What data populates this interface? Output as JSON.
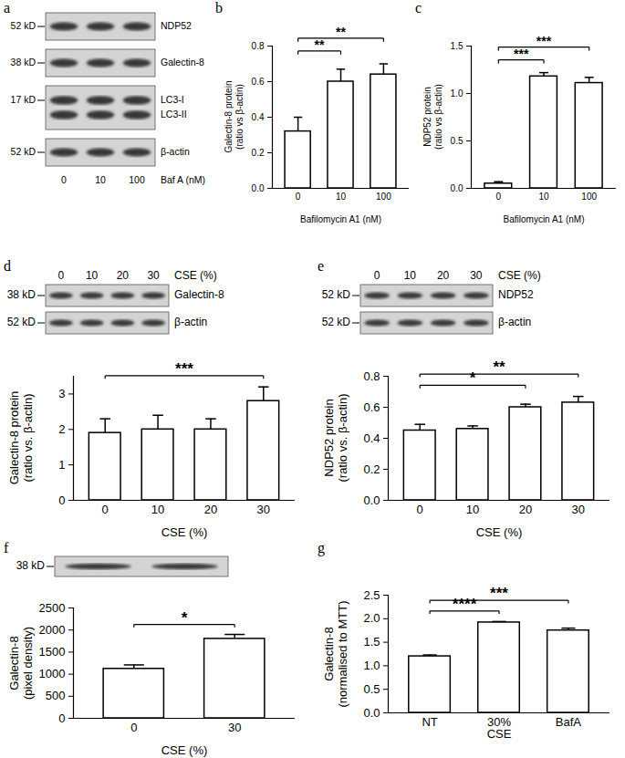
{
  "chart_data": [
    {
      "panel": "b",
      "type": "bar",
      "categories": [
        "0",
        "10",
        "100"
      ],
      "values": [
        0.32,
        0.6,
        0.64
      ],
      "errors": [
        0.08,
        0.07,
        0.06
      ],
      "xlabel": "Bafilomycin A1 (nM)",
      "ylabel": "Galectin-8 protein\n(ratio vs β-actin)",
      "ylim": [
        0,
        0.8
      ],
      "yticks": [
        {
          "value": 0,
          "label": "0.0"
        },
        {
          "value": 0.2,
          "label": "0.2"
        },
        {
          "value": 0.4,
          "label": "0.4"
        },
        {
          "value": 0.6,
          "label": "0.6"
        },
        {
          "value": 0.8,
          "label": "0.8"
        }
      ],
      "significance": [
        {
          "from": "0",
          "to": "10",
          "text": "**"
        },
        {
          "from": "0",
          "to": "100",
          "text": "**"
        }
      ]
    },
    {
      "panel": "c",
      "type": "bar",
      "categories": [
        "0",
        "10",
        "100"
      ],
      "values": [
        0.05,
        1.18,
        1.11
      ],
      "errors": [
        0.02,
        0.04,
        0.06
      ],
      "xlabel": "Bafilomycin A1 (nM)",
      "ylabel": "NDP52 protein\n(ratio vs β-actin)",
      "ylim": [
        0,
        1.5
      ],
      "yticks": [
        {
          "value": 0,
          "label": "0.0"
        },
        {
          "value": 0.5,
          "label": "0.5"
        },
        {
          "value": 1,
          "label": "1.0"
        },
        {
          "value": 1.5,
          "label": "1.5"
        }
      ],
      "significance": [
        {
          "from": "0",
          "to": "10",
          "text": "***"
        },
        {
          "from": "0",
          "to": "100",
          "text": "***"
        }
      ]
    },
    {
      "panel": "d",
      "type": "bar",
      "categories": [
        "0",
        "10",
        "20",
        "30"
      ],
      "values": [
        1.9,
        2.0,
        2.0,
        2.8
      ],
      "errors": [
        0.4,
        0.4,
        0.3,
        0.4
      ],
      "xlabel": "CSE (%)",
      "ylabel": "Galectin-8 protein\n(ratio vs. β-actin)",
      "ylim": [
        0,
        3.5
      ],
      "yticks": [
        0,
        1,
        2,
        3
      ],
      "significance": [
        {
          "from": "0",
          "to": "30",
          "text": "***"
        }
      ]
    },
    {
      "panel": "e",
      "type": "bar",
      "categories": [
        "0",
        "10",
        "20",
        "30"
      ],
      "values": [
        0.45,
        0.46,
        0.6,
        0.63
      ],
      "errors": [
        0.04,
        0.02,
        0.02,
        0.04
      ],
      "xlabel": "CSE (%)",
      "ylabel": "NDP52 protein\n(ratio vs. β-actin)",
      "ylim": [
        0,
        0.8
      ],
      "yticks": [
        {
          "value": 0,
          "label": "0.0"
        },
        {
          "value": 0.2,
          "label": "0.2"
        },
        {
          "value": 0.4,
          "label": "0.4"
        },
        {
          "value": 0.6,
          "label": "0.6"
        },
        {
          "value": 0.8,
          "label": "0.8"
        }
      ],
      "significance": [
        {
          "from": "0",
          "to": "20",
          "text": "*"
        },
        {
          "from": "0",
          "to": "30",
          "text": "**"
        }
      ]
    },
    {
      "panel": "f",
      "type": "bar",
      "categories": [
        "0",
        "30"
      ],
      "values": [
        1120,
        1800
      ],
      "errors": [
        90,
        100
      ],
      "xlabel": "CSE (%)",
      "ylabel": "Galectin-8\n(pixel density)",
      "ylim": [
        0,
        2500
      ],
      "yticks": [
        0,
        500,
        1000,
        1500,
        2000,
        2500
      ],
      "significance": [
        {
          "from": "0",
          "to": "30",
          "text": "*"
        }
      ]
    },
    {
      "panel": "g",
      "type": "bar",
      "categories": [
        "NT",
        "30%\nCSE",
        "BafA"
      ],
      "values": [
        1.2,
        1.92,
        1.75
      ],
      "errors": [
        0.03,
        0.02,
        0.05
      ],
      "xlabel": null,
      "ylabel": "Galectin-8\n(normalised to MTT)",
      "ylim": [
        0,
        2.5
      ],
      "yticks": [
        {
          "value": 0,
          "label": "0.0"
        },
        {
          "value": 0.5,
          "label": "0.5"
        },
        {
          "value": 1,
          "label": "1.0"
        },
        {
          "value": 1.5,
          "label": "1.5"
        },
        {
          "value": 2,
          "label": "2.0"
        },
        {
          "value": 2.5,
          "label": "2.5"
        }
      ],
      "significance": [
        {
          "from": "NT",
          "to": "30%\nCSE",
          "text": "****"
        },
        {
          "from": "NT",
          "to": "BafA",
          "text": "***"
        }
      ]
    }
  ],
  "blots": [
    {
      "panel": "a",
      "lanes": [
        "0",
        "10",
        "100"
      ],
      "lane_title": "Baf A (nM)",
      "rows": [
        {
          "labels": [
            "NDP52"
          ],
          "mw": "52 kD"
        },
        {
          "labels": [
            "Galectin-8"
          ],
          "mw": "38 kD"
        },
        {
          "labels": [
            "LC3-I",
            "LC3-II"
          ],
          "mw": "17 kD"
        },
        {
          "labels": [
            "β-actin"
          ],
          "mw": "52 kD"
        }
      ]
    },
    {
      "panel": "d",
      "lanes": [
        "0",
        "10",
        "20",
        "30"
      ],
      "lane_title": "CSE (%)",
      "rows": [
        {
          "labels": [
            "Galectin-8"
          ],
          "mw": "38 kD"
        },
        {
          "labels": [
            "β-actin"
          ],
          "mw": "52 kD"
        }
      ]
    },
    {
      "panel": "e",
      "lanes": [
        "0",
        "10",
        "20",
        "30"
      ],
      "lane_title": "CSE (%)",
      "rows": [
        {
          "labels": [
            "NDP52"
          ],
          "mw": "52 kD"
        },
        {
          "labels": [
            "β-actin"
          ],
          "mw": "52 kD"
        }
      ]
    },
    {
      "panel": "f",
      "lanes": [],
      "lane_title": null,
      "rows": [
        {
          "labels": [],
          "mw": "38 kD"
        }
      ]
    }
  ]
}
